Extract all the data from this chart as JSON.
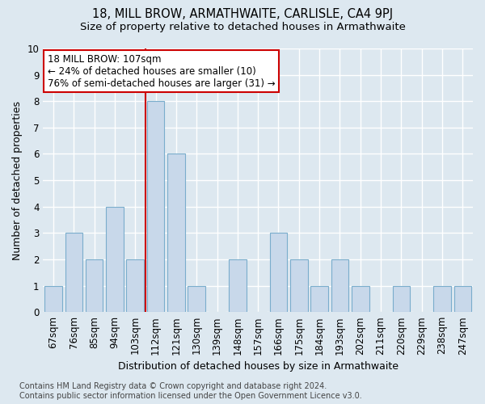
{
  "title": "18, MILL BROW, ARMATHWAITE, CARLISLE, CA4 9PJ",
  "subtitle": "Size of property relative to detached houses in Armathwaite",
  "xlabel": "Distribution of detached houses by size in Armathwaite",
  "ylabel": "Number of detached properties",
  "categories": [
    "67sqm",
    "76sqm",
    "85sqm",
    "94sqm",
    "103sqm",
    "112sqm",
    "121sqm",
    "130sqm",
    "139sqm",
    "148sqm",
    "157sqm",
    "166sqm",
    "175sqm",
    "184sqm",
    "193sqm",
    "202sqm",
    "211sqm",
    "220sqm",
    "229sqm",
    "238sqm",
    "247sqm"
  ],
  "values": [
    1,
    3,
    2,
    4,
    2,
    8,
    6,
    1,
    0,
    2,
    0,
    3,
    2,
    1,
    2,
    1,
    0,
    1,
    0,
    1,
    1
  ],
  "bar_color": "#c8d8ea",
  "bar_edge_color": "#7aadcc",
  "vline_x_index": 4.5,
  "vline_color": "#cc0000",
  "annotation_line1": "18 MILL BROW: 107sqm",
  "annotation_line2": "← 24% of detached houses are smaller (10)",
  "annotation_line3": "76% of semi-detached houses are larger (31) →",
  "annotation_box_color": "#ffffff",
  "annotation_box_edge": "#cc0000",
  "ylim": [
    0,
    10
  ],
  "yticks": [
    0,
    1,
    2,
    3,
    4,
    5,
    6,
    7,
    8,
    9,
    10
  ],
  "background_color": "#dde8f0",
  "grid_color": "#ffffff",
  "footnote": "Contains HM Land Registry data © Crown copyright and database right 2024.\nContains public sector information licensed under the Open Government Licence v3.0.",
  "title_fontsize": 10.5,
  "subtitle_fontsize": 9.5,
  "xlabel_fontsize": 9,
  "ylabel_fontsize": 9,
  "tick_fontsize": 8.5,
  "annotation_fontsize": 8.5,
  "footnote_fontsize": 7
}
